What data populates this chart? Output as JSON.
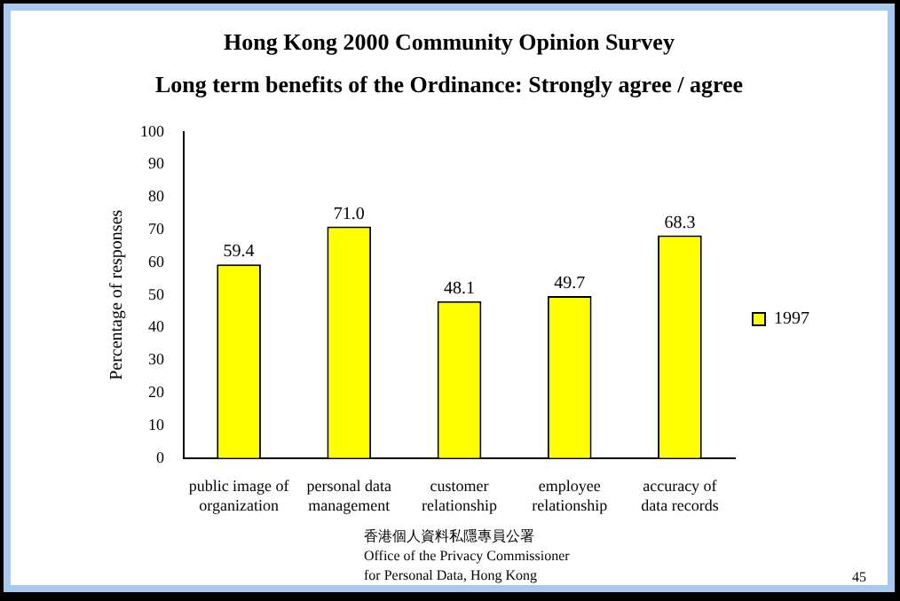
{
  "chart_data": {
    "type": "bar",
    "title": "Hong Kong 2000 Community Opinion Survey",
    "subtitle": "Long term benefits of the Ordinance: Strongly agree / agree",
    "ylabel": "Percentage of responses",
    "categories": [
      "public image of organization",
      "personal data management",
      "customer relationship",
      "employee relationship",
      "accuracy of data records"
    ],
    "series": [
      {
        "name": "1997",
        "color": "#ffff00",
        "values": [
          59.4,
          71.0,
          48.1,
          49.7,
          68.3
        ]
      }
    ],
    "value_labels": [
      "59.4",
      "71.0",
      "48.1",
      "49.7",
      "68.3"
    ],
    "ylim": [
      0,
      100
    ],
    "yticks": [
      0,
      10,
      20,
      30,
      40,
      50,
      60,
      70,
      80,
      90,
      100
    ],
    "grid": false,
    "legend": "right",
    "annotations": [
      "香港個人資料私隱專員公署",
      "Office of the Privacy Commissioner",
      "for Personal Data, Hong Kong",
      "45"
    ]
  }
}
